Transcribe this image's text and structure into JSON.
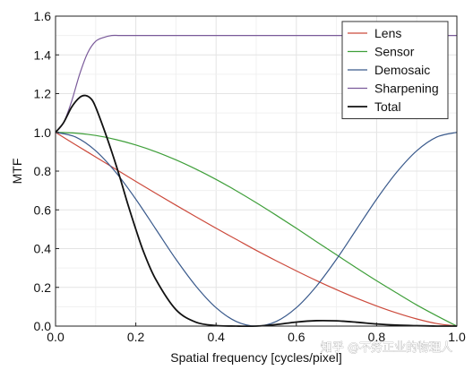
{
  "chart_data": {
    "type": "line",
    "xlabel": "Spatial frequency [cycles/pixel]",
    "ylabel": "MTF",
    "xlim": [
      0,
      1
    ],
    "ylim": [
      0,
      1.6
    ],
    "xticks": [
      "0.0",
      "0.2",
      "0.4",
      "0.6",
      "0.8",
      "1.0"
    ],
    "yticks": [
      "0.0",
      "0.2",
      "0.4",
      "0.6",
      "0.8",
      "1.0",
      "1.2",
      "1.4",
      "1.6"
    ],
    "grid": true,
    "legend_position": "top-right",
    "series": [
      {
        "name": "Lens",
        "color": "#cc4a3c",
        "width": 1.2,
        "x": [
          0,
          0.05,
          0.1,
          0.15,
          0.2,
          0.25,
          0.3,
          0.35,
          0.4,
          0.45,
          0.5,
          0.55,
          0.6,
          0.65,
          0.7,
          0.75,
          0.8,
          0.85,
          0.9,
          0.95,
          1.0
        ],
        "y": [
          1.0,
          0.936,
          0.873,
          0.81,
          0.747,
          0.685,
          0.624,
          0.564,
          0.505,
          0.448,
          0.391,
          0.337,
          0.285,
          0.235,
          0.188,
          0.144,
          0.104,
          0.068,
          0.037,
          0.013,
          0.0
        ]
      },
      {
        "name": "Sensor",
        "color": "#3f9f3a",
        "width": 1.2,
        "x": [
          0,
          0.05,
          0.1,
          0.15,
          0.2,
          0.25,
          0.3,
          0.35,
          0.4,
          0.45,
          0.5,
          0.55,
          0.6,
          0.65,
          0.7,
          0.75,
          0.8,
          0.85,
          0.9,
          0.95,
          1.0
        ],
        "y": [
          1.0,
          0.996,
          0.984,
          0.963,
          0.935,
          0.9,
          0.858,
          0.81,
          0.757,
          0.699,
          0.637,
          0.572,
          0.505,
          0.436,
          0.368,
          0.3,
          0.234,
          0.171,
          0.109,
          0.053,
          0.0
        ]
      },
      {
        "name": "Demosaic",
        "color": "#3a5a8c",
        "width": 1.2,
        "x": [
          0,
          0.05,
          0.1,
          0.15,
          0.2,
          0.25,
          0.3,
          0.35,
          0.4,
          0.45,
          0.5,
          0.55,
          0.6,
          0.65,
          0.7,
          0.75,
          0.8,
          0.85,
          0.9,
          0.95,
          1.0
        ],
        "y": [
          1.0,
          0.976,
          0.905,
          0.794,
          0.655,
          0.5,
          0.345,
          0.206,
          0.095,
          0.024,
          0.0,
          0.024,
          0.095,
          0.206,
          0.345,
          0.5,
          0.655,
          0.794,
          0.905,
          0.976,
          1.0
        ]
      },
      {
        "name": "Sharpening",
        "color": "#7a5a9a",
        "width": 1.2,
        "x": [
          0,
          0.02,
          0.04,
          0.06,
          0.08,
          0.1,
          0.12,
          0.14,
          0.16,
          0.2,
          0.3,
          0.4,
          0.5,
          0.6,
          0.7,
          0.8,
          0.9,
          1.0
        ],
        "y": [
          1.0,
          1.05,
          1.16,
          1.3,
          1.41,
          1.47,
          1.49,
          1.5,
          1.5,
          1.5,
          1.5,
          1.5,
          1.5,
          1.5,
          1.5,
          1.5,
          1.5,
          1.5
        ]
      },
      {
        "name": "Total",
        "color": "#111111",
        "width": 1.8,
        "x": [
          0,
          0.02,
          0.04,
          0.06,
          0.075,
          0.09,
          0.1,
          0.12,
          0.14,
          0.16,
          0.18,
          0.2,
          0.22,
          0.25,
          0.3,
          0.35,
          0.4,
          0.45,
          0.5,
          0.55,
          0.6,
          0.65,
          0.7,
          0.75,
          0.8,
          0.85,
          0.9,
          0.95,
          1.0
        ],
        "y": [
          1.0,
          1.05,
          1.13,
          1.18,
          1.19,
          1.17,
          1.13,
          1.02,
          0.9,
          0.77,
          0.63,
          0.5,
          0.38,
          0.24,
          0.085,
          0.02,
          0.003,
          0.0,
          0.0,
          0.008,
          0.021,
          0.028,
          0.027,
          0.02,
          0.011,
          0.005,
          0.002,
          0.0,
          0.0
        ]
      }
    ]
  },
  "watermark": "知乎 @不务正业的物理人"
}
